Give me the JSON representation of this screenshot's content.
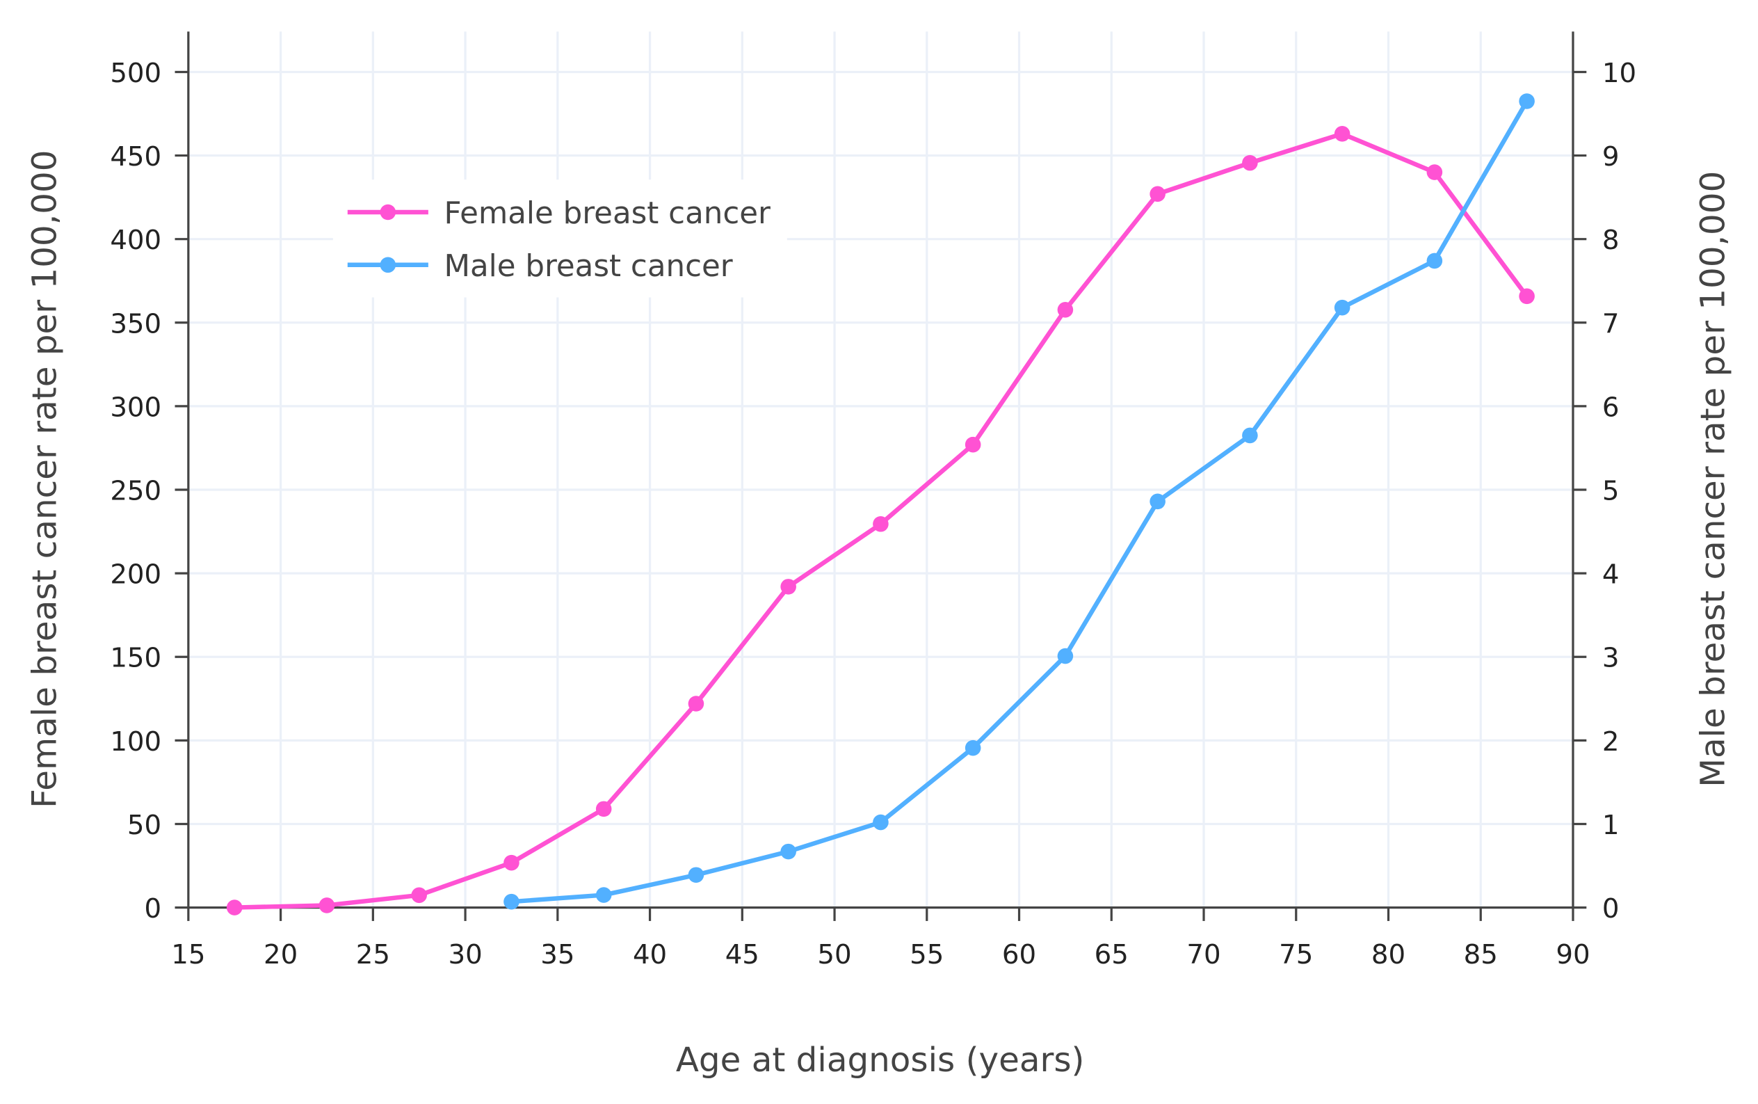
{
  "chart_data": {
    "type": "line",
    "xlabel": "Age at diagnosis (years)",
    "ylabel": "Female breast cancer rate per 100,000",
    "y2label": "Male breast cancer rate per 100,000",
    "xlim": [
      15,
      90
    ],
    "ylim": [
      0,
      500
    ],
    "y2lim": [
      0,
      10
    ],
    "xticks": [
      "15",
      "20",
      "25",
      "30",
      "35",
      "40",
      "45",
      "50",
      "55",
      "60",
      "65",
      "70",
      "75",
      "80",
      "85",
      "90"
    ],
    "yticks": [
      "0",
      "50",
      "100",
      "150",
      "200",
      "250",
      "300",
      "350",
      "400",
      "450",
      "500"
    ],
    "y2ticks": [
      "0",
      "1",
      "2",
      "3",
      "4",
      "5",
      "6",
      "7",
      "8",
      "9",
      "10"
    ],
    "grid": true,
    "legend_placement": "top-left",
    "series": [
      {
        "name": "Female breast cancer",
        "axis": "left",
        "color": "#ff52d3",
        "x": [
          17.5,
          22.5,
          27.5,
          32.5,
          37.5,
          42.5,
          47.5,
          52.5,
          57.5,
          62.5,
          67.5,
          72.5,
          77.5,
          82.5,
          87.5
        ],
        "y": [
          0,
          1.3,
          7.4,
          26.8,
          59,
          122,
          192,
          229.5,
          277,
          357.7,
          427,
          445.6,
          463,
          440,
          365.8
        ]
      },
      {
        "name": "Male breast cancer",
        "axis": "right",
        "color": "#52b0ff",
        "x": [
          32.5,
          37.5,
          42.5,
          47.5,
          52.5,
          57.5,
          62.5,
          67.5,
          72.5,
          77.5,
          82.5,
          87.5
        ],
        "y": [
          0.07,
          0.15,
          0.39,
          0.67,
          1.02,
          1.91,
          3.01,
          4.86,
          5.65,
          7.18,
          7.74,
          9.65
        ]
      }
    ]
  }
}
